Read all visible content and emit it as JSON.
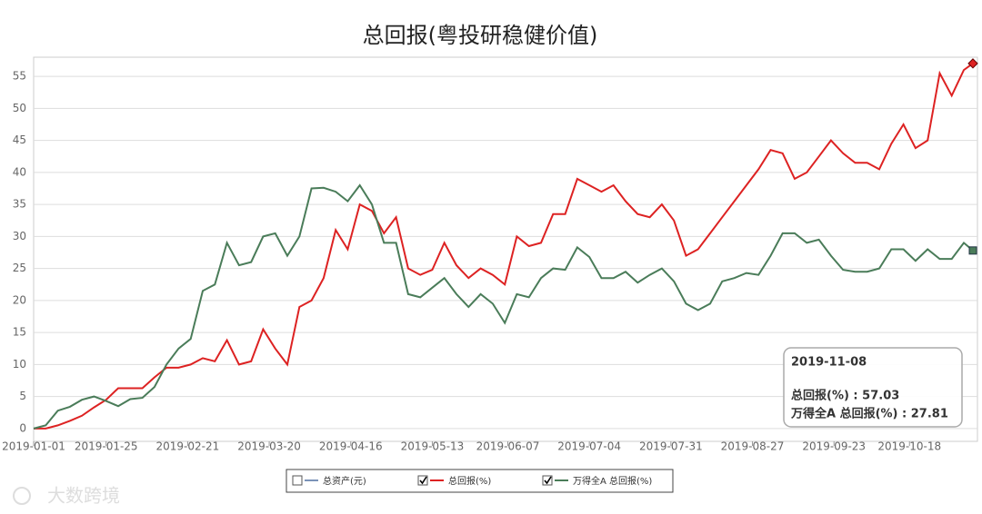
{
  "chart_data": {
    "type": "line",
    "title": "总回报(粤投研稳健价值)",
    "x": [
      "2019-01-01",
      "2019-01-05",
      "2019-01-09",
      "2019-01-13",
      "2019-01-17",
      "2019-01-21",
      "2019-01-25",
      "2019-01-29",
      "2019-02-02",
      "2019-02-06",
      "2019-02-10",
      "2019-02-14",
      "2019-02-18",
      "2019-02-22",
      "2019-02-26",
      "2019-03-02",
      "2019-03-06",
      "2019-03-10",
      "2019-03-14",
      "2019-03-18",
      "2019-03-22",
      "2019-03-26",
      "2019-03-30",
      "2019-04-03",
      "2019-04-07",
      "2019-04-11",
      "2019-04-15",
      "2019-04-19",
      "2019-04-23",
      "2019-04-27",
      "2019-05-01",
      "2019-05-05",
      "2019-05-09",
      "2019-05-13",
      "2019-05-17",
      "2019-05-21",
      "2019-05-25",
      "2019-05-29",
      "2019-06-02",
      "2019-06-06",
      "2019-06-10",
      "2019-06-14",
      "2019-06-18",
      "2019-06-22",
      "2019-06-26",
      "2019-06-30",
      "2019-07-04",
      "2019-07-08",
      "2019-07-12",
      "2019-07-16",
      "2019-07-20",
      "2019-07-24",
      "2019-07-28",
      "2019-08-01",
      "2019-08-05",
      "2019-08-09",
      "2019-08-13",
      "2019-08-17",
      "2019-08-21",
      "2019-08-25",
      "2019-08-29",
      "2019-09-02",
      "2019-09-06",
      "2019-09-10",
      "2019-09-14",
      "2019-09-18",
      "2019-09-22",
      "2019-09-26",
      "2019-09-30",
      "2019-10-04",
      "2019-10-08",
      "2019-10-12",
      "2019-10-16",
      "2019-10-20",
      "2019-10-24",
      "2019-10-28",
      "2019-11-01",
      "2019-11-05",
      "2019-11-08"
    ],
    "series": [
      {
        "name": "总回报(%)",
        "color": "#dd2222",
        "marker": "diamond",
        "values": [
          0,
          0,
          0.5,
          1.2,
          2,
          3.3,
          4.5,
          6.3,
          6.3,
          6.3,
          8,
          9.5,
          9.5,
          10,
          11,
          10.5,
          13.8,
          10,
          10.5,
          15.5,
          12.5,
          10,
          19,
          20,
          23.5,
          31,
          28,
          35,
          34,
          30.5,
          33,
          25,
          24,
          24.8,
          29,
          25.5,
          23.5,
          25,
          24,
          22.5,
          30,
          28.5,
          29,
          33.5,
          33.5,
          39,
          38,
          37,
          38,
          35.5,
          33.5,
          33,
          35,
          32.5,
          27,
          28,
          30.5,
          33,
          35.5,
          38,
          40.5,
          43.5,
          43,
          39,
          40,
          42.5,
          45,
          43,
          41.5,
          41.5,
          40.5,
          44.5,
          47.5,
          43.8,
          45,
          55.5,
          52,
          56,
          57.03
        ]
      },
      {
        "name": "万得全A 总回报(%)",
        "color": "#4a7c59",
        "marker": "square",
        "values": [
          0,
          0.5,
          2.8,
          3.4,
          4.5,
          5,
          4.3,
          3.5,
          4.6,
          4.8,
          6.5,
          10,
          12.5,
          14,
          21.5,
          22.5,
          29,
          25.5,
          26,
          30,
          30.5,
          27,
          30,
          37.5,
          37.6,
          37,
          35.5,
          38,
          35,
          29,
          29,
          21,
          20.5,
          22,
          23.5,
          21,
          19,
          21,
          19.5,
          16.5,
          21,
          20.5,
          23.5,
          25,
          24.8,
          28.3,
          26.8,
          23.5,
          23.5,
          24.5,
          22.8,
          24,
          25,
          23,
          19.5,
          18.5,
          19.5,
          23,
          23.5,
          24.3,
          24,
          27,
          30.5,
          30.5,
          29,
          29.5,
          27,
          24.8,
          24.5,
          24.5,
          25,
          28,
          28,
          26.2,
          28,
          26.5,
          26.5,
          29,
          27.81
        ]
      }
    ],
    "hidden_series": [
      {
        "name": "总资产(元)",
        "color": "#7b93b8"
      }
    ],
    "xlim": [
      "2019-01-01",
      "2019-11-08"
    ],
    "xticks": [
      "2019-01-01",
      "2019-01-25",
      "2019-02-21",
      "2019-03-20",
      "2019-04-16",
      "2019-05-13",
      "2019-06-07",
      "2019-07-04",
      "2019-07-31",
      "2019-08-27",
      "2019-09-23",
      "2019-10-18"
    ],
    "ylim": [
      -2,
      58
    ],
    "yticks": [
      0,
      5,
      10,
      15,
      20,
      25,
      30,
      35,
      40,
      45,
      50,
      55
    ],
    "grid": true,
    "tooltip": {
      "title": "2019-11-08",
      "rows": [
        "总回报(%) : 57.03",
        "万得全A 总回报(%) : 27.81"
      ]
    },
    "watermark": "大数跨境"
  }
}
